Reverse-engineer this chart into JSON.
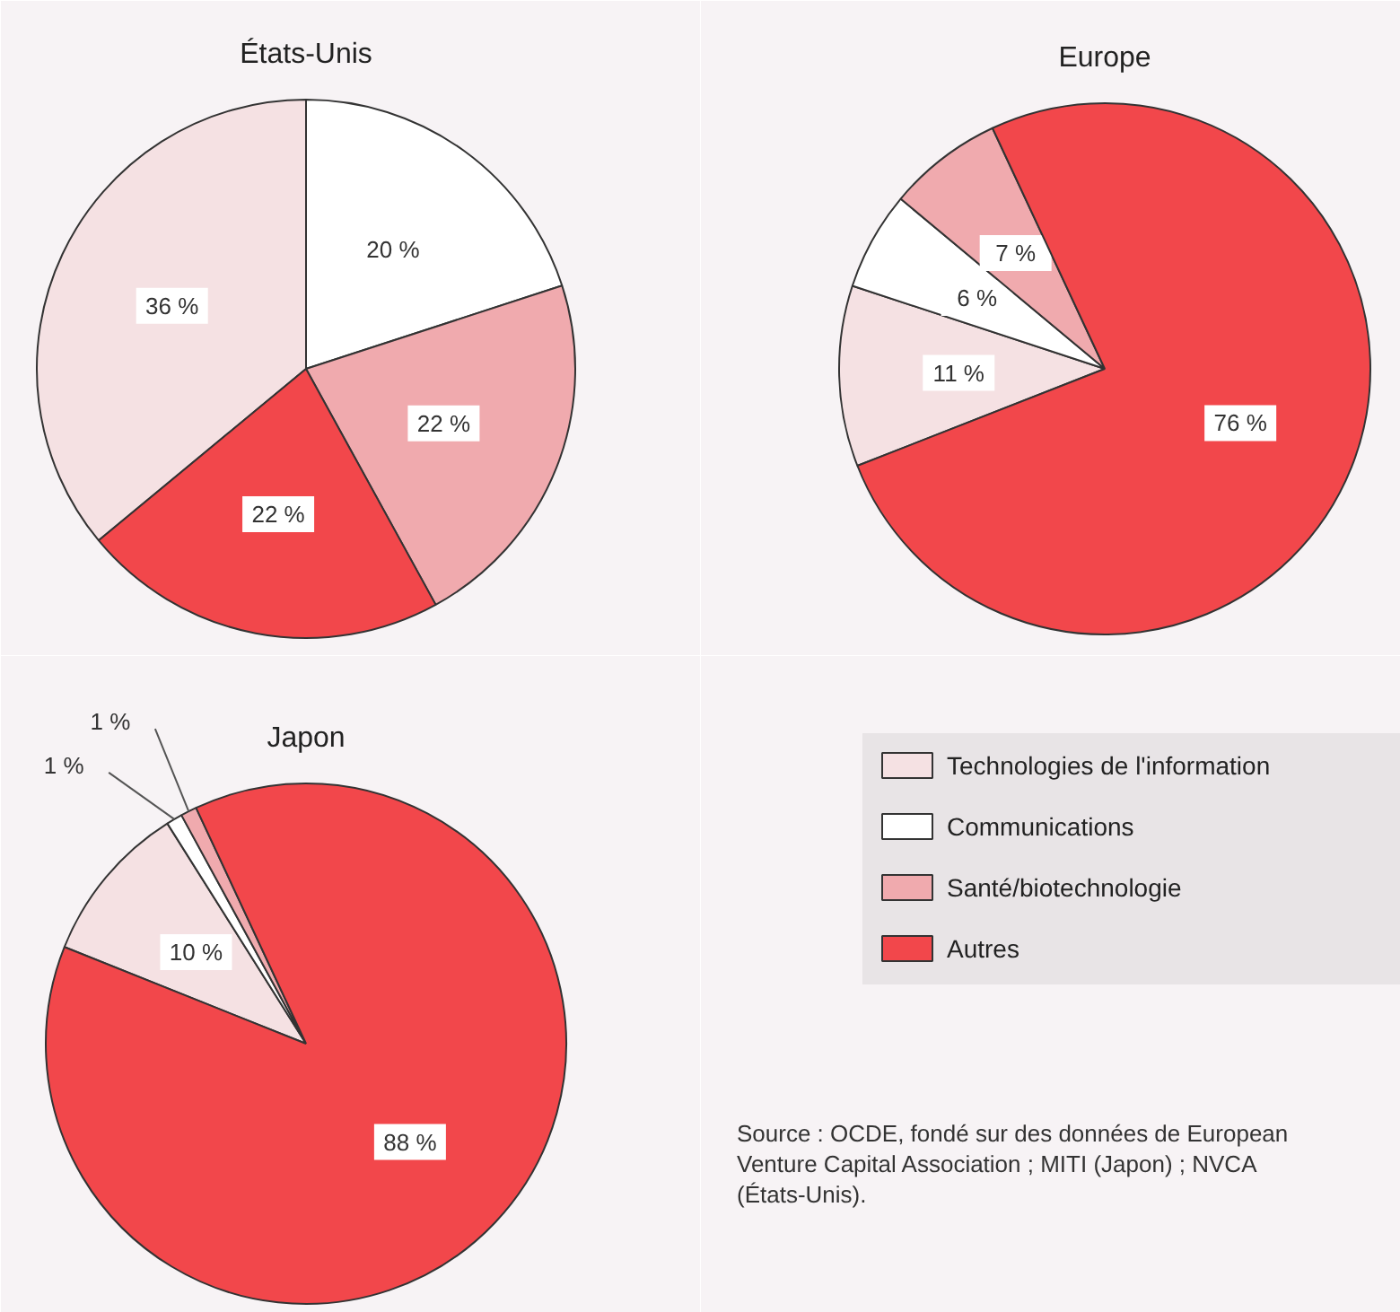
{
  "chart_data": [
    {
      "type": "pie",
      "title": "États-Unis",
      "categories": [
        "Technologies de l'information",
        "Communications",
        "Santé/biotechnologie",
        "Autres"
      ],
      "values": [
        36,
        20,
        22,
        22
      ],
      "value_labels": [
        "36 %",
        "20 %",
        "22 %",
        "22 %"
      ],
      "colors": [
        "#f5e1e3",
        "#ffffff",
        "#f0aaae",
        "#f2474b"
      ],
      "legend": "bottom right"
    },
    {
      "type": "pie",
      "title": "Europe",
      "categories": [
        null,
        null,
        null,
        null
      ],
      "values": [
        11,
        6,
        7,
        76
      ],
      "value_labels": [
        "11 %",
        "6 %",
        "7 %",
        "76 %"
      ],
      "colors": [
        "#f5e1e3",
        "#ffffff",
        "#f0aaae",
        "#f2474b"
      ]
    },
    {
      "type": "pie",
      "title": "Japon",
      "categories": [
        null,
        null,
        null,
        null
      ],
      "values": [
        10,
        1,
        1,
        88
      ],
      "value_labels": [
        "10 %",
        "1 %",
        "1 %",
        "88 %"
      ],
      "colors": [
        "#f5e1e3",
        "#ffffff",
        "#f0aaae",
        "#f2474b"
      ],
      "annotations": [
        "Source : OCDE, fondé sur des données de European Venture Capital Association ; MITI (Japon) ; NVCA (États-Unis)."
      ]
    }
  ]
}
